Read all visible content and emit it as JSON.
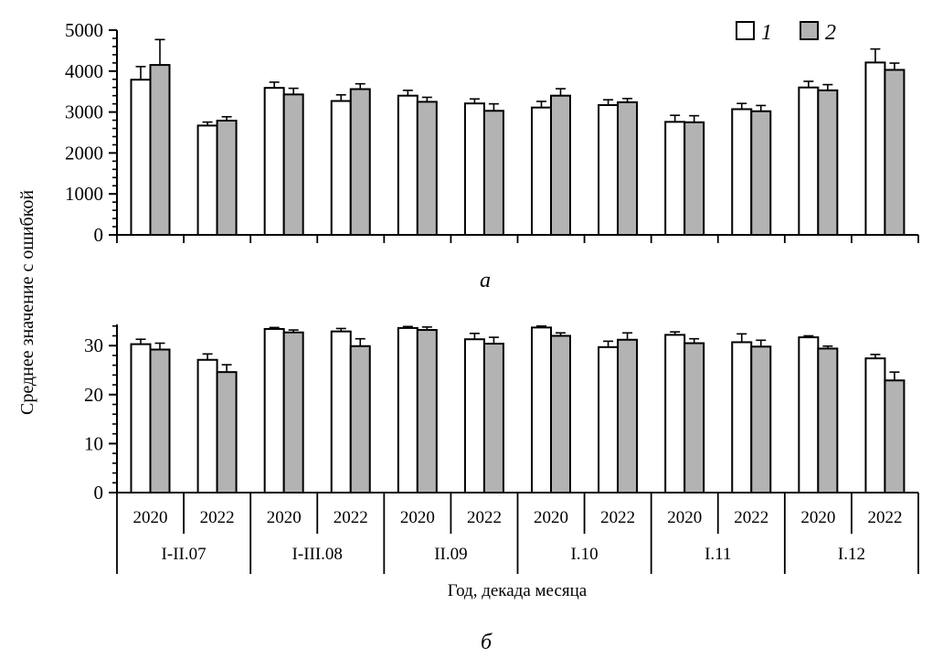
{
  "figure": {
    "ylabel": "Среднее значение с ошибкой",
    "xlabel": "Год, декада месяца",
    "panel_labels": {
      "a": "а",
      "b": "б"
    },
    "legend": [
      {
        "label": "1",
        "color": "#ffffff"
      },
      {
        "label": "2",
        "color": "#b3b3b3"
      }
    ],
    "axis_color": "#000000",
    "bar_outline_color": "#000000"
  },
  "chart_data": [
    {
      "type": "bar",
      "panel": "а",
      "title": "",
      "xlabel": "Год, декада месяца",
      "ylabel": "Среднее значение с ошибкой",
      "periods": [
        "I-II.07",
        "I-III.08",
        "II.09",
        "I.10",
        "I.11",
        "I.12"
      ],
      "years": [
        "2020",
        "2022"
      ],
      "ylim": [
        0,
        5000
      ],
      "yticks": [
        0,
        1000,
        2000,
        3000,
        4000,
        5000
      ],
      "minor_tick_step": 200,
      "grid": false,
      "legend_position": "top-right",
      "error_bars": "upper",
      "series": [
        {
          "name": "1",
          "fill": "#ffffff",
          "values": [
            3790,
            2670,
            3590,
            3270,
            3400,
            3210,
            3110,
            3170,
            2760,
            3070,
            3600,
            4210
          ],
          "errors": [
            320,
            85,
            140,
            150,
            130,
            110,
            150,
            130,
            160,
            140,
            150,
            330
          ]
        },
        {
          "name": "2",
          "fill": "#b3b3b3",
          "values": [
            4150,
            2790,
            3430,
            3560,
            3250,
            3030,
            3400,
            3240,
            2750,
            3020,
            3530,
            4030
          ],
          "errors": [
            620,
            95,
            150,
            130,
            110,
            170,
            170,
            90,
            160,
            140,
            140,
            165
          ]
        }
      ]
    },
    {
      "type": "bar",
      "panel": "б",
      "title": "",
      "xlabel": "Год, декада месяца",
      "ylabel": "Среднее значение с ошибкой",
      "periods": [
        "I-II.07",
        "I-III.08",
        "II.09",
        "I.10",
        "I.11",
        "I.12"
      ],
      "years": [
        "2020",
        "2022"
      ],
      "ylim": [
        0,
        34
      ],
      "yticks": [
        0,
        10,
        20,
        30
      ],
      "minor_tick_step": 2,
      "grid": false,
      "error_bars": "upper",
      "series": [
        {
          "name": "1",
          "fill": "#ffffff",
          "values": [
            30.3,
            27.1,
            33.4,
            32.9,
            33.6,
            31.3,
            33.7,
            29.7,
            32.2,
            30.7,
            31.7,
            27.4
          ],
          "errors": [
            1.0,
            1.2,
            0.3,
            0.6,
            0.3,
            1.2,
            0.3,
            1.2,
            0.6,
            1.7,
            0.3,
            0.8
          ]
        },
        {
          "name": "2",
          "fill": "#b3b3b3",
          "values": [
            29.2,
            24.6,
            32.7,
            29.9,
            33.2,
            30.4,
            32.0,
            31.2,
            30.5,
            29.8,
            29.4,
            22.9
          ],
          "errors": [
            1.3,
            1.5,
            0.5,
            1.5,
            0.6,
            1.3,
            0.6,
            1.4,
            0.9,
            1.3,
            0.5,
            1.7
          ]
        }
      ]
    }
  ]
}
